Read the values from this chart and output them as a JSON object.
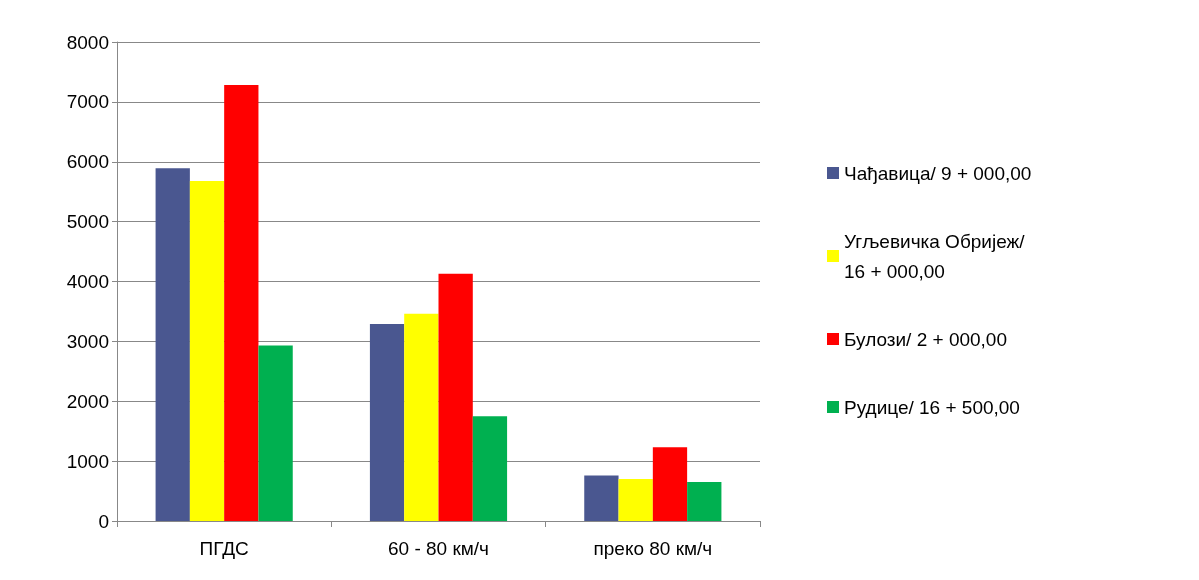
{
  "chart_data": {
    "type": "bar",
    "categories": [
      "ПГДС",
      "60 - 80 км/ч",
      "преко 80 км/ч"
    ],
    "series": [
      {
        "name": "Чађавица/ 9 + 000,00",
        "color": "#4a5790",
        "values": [
          5890,
          3290,
          760
        ]
      },
      {
        "name": "Угљевичка Обријеж/ 16 + 000,00",
        "color": "#ffff00",
        "values": [
          5680,
          3460,
          700
        ]
      },
      {
        "name": "Булози/ 2 + 000,00",
        "color": "#ff0000",
        "values": [
          7280,
          4130,
          1230
        ]
      },
      {
        "name": "Рудице/ 16 + 500,00",
        "color": "#00b050",
        "values": [
          2930,
          1750,
          650
        ]
      }
    ],
    "ylim": [
      0,
      8000
    ],
    "yticks": [
      0,
      1000,
      2000,
      3000,
      4000,
      5000,
      6000,
      7000,
      8000
    ],
    "grid": "y",
    "legend": "right"
  }
}
